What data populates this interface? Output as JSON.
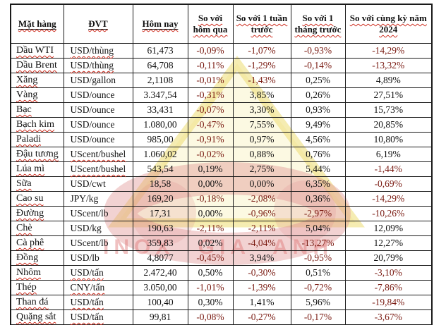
{
  "watermark": {
    "letters": "INOX GIA ANH",
    "triangle_fill": "#F5EC9E",
    "triangle_stroke": "#EDDC72",
    "circle_color": "#DE8F8F"
  },
  "colors": {
    "negative_value": "#7A1B12",
    "positive_value": "#111111",
    "spellcheck": "#CE2F21",
    "grid": "#1a1a1a"
  },
  "table": {
    "headers": [
      "Mặt hàng",
      "ĐVT",
      "Hôm nay",
      "So với hôm qua",
      "So với 1 tuần trước",
      "So với 1 tháng trước",
      "So với cùng kỳ năm 2024"
    ],
    "header_solid_underline": [
      true,
      true,
      true,
      false,
      false,
      false,
      false
    ],
    "rows": [
      {
        "name": "Dầu WTI",
        "unit": "USD/thùng",
        "unit_spell": true,
        "values": [
          "61,473",
          "-0,09%",
          "-1,07%",
          "-0,93%",
          "-14,29%"
        ]
      },
      {
        "name": "Dầu Brent",
        "unit": "USD/thùng",
        "unit_spell": true,
        "values": [
          "64,708",
          "-0,11%",
          "-1,29%",
          "-0,14%",
          "-13,32%"
        ]
      },
      {
        "name": "Xăng",
        "unit": "USD/gallon",
        "unit_spell": false,
        "values": [
          "2,1108",
          "-0,01%",
          "-1,43%",
          "0,25%",
          "4,89%"
        ]
      },
      {
        "name": "Vàng",
        "unit": "USD/ounce",
        "unit_spell": false,
        "values": [
          "3.347,54",
          "-0,31%",
          "3,85%",
          "0,26%",
          "27,51%"
        ]
      },
      {
        "name": "Bạc",
        "unit": "USD/ounce",
        "unit_spell": false,
        "values": [
          "33,431",
          "-0,07%",
          "3,30%",
          "0,93%",
          "15,73%"
        ]
      },
      {
        "name": "Bạch kim",
        "unit": "USD/ounce",
        "unit_spell": false,
        "values": [
          "1.080,00",
          "-0,47%",
          "7,55%",
          "9,49%",
          "20,85%"
        ]
      },
      {
        "name": "Paladi",
        "unit": "USD/ounce",
        "unit_spell": false,
        "values": [
          "985,00",
          "-0,91%",
          "0,97%",
          "4,56%",
          "10,80%"
        ]
      },
      {
        "name": "Đậu tương",
        "unit": "UScent/bushel",
        "unit_spell": true,
        "values": [
          "1.060,02",
          "-0,02%",
          "0,88%",
          "0,76%",
          "6,19%"
        ]
      },
      {
        "name": "Lúa mì",
        "unit": "UScent/bushel",
        "unit_spell": true,
        "values": [
          "543,54",
          "0,19%",
          "2,75%",
          "5,44%",
          "-1,44%"
        ]
      },
      {
        "name": "Sữa",
        "unit": "USD/cwt",
        "unit_spell": false,
        "values": [
          "18,58",
          "0,00%",
          "0,00%",
          "6,35%",
          "-0,69%"
        ]
      },
      {
        "name": "Cao su",
        "unit": "JPY/kg",
        "unit_spell": false,
        "values": [
          "169,20",
          "-0,18%",
          "-2,08%",
          "0,36%",
          "-14,29%"
        ]
      },
      {
        "name": "Đường",
        "unit": "UScent/lb",
        "unit_spell": false,
        "values": [
          "17,31",
          "0,00%",
          "-0,96%",
          "-2,97%",
          "-10,26%"
        ]
      },
      {
        "name": "Chè",
        "unit": "USD/kg",
        "unit_spell": false,
        "values": [
          "190,63",
          "-2,11%",
          "-2,11%",
          "5,04%",
          "12,09%"
        ]
      },
      {
        "name": "Cà phê",
        "unit": "UScent/lb",
        "unit_spell": false,
        "values": [
          "359,83",
          "0,02%",
          "-4,04%",
          "-13,27%",
          "12,27%"
        ]
      },
      {
        "name": "Đồng",
        "unit": "USD/lb",
        "unit_spell": false,
        "values": [
          "4,8077",
          "-0,45%",
          "3,94%",
          "-0,95%",
          "20,79%"
        ]
      },
      {
        "name": "Nhôm",
        "unit": "USD/tấn",
        "unit_spell": true,
        "values": [
          "2.472,40",
          "0,50%",
          "-0,30%",
          "0,51%",
          "-3,10%"
        ]
      },
      {
        "name": "Thép",
        "unit": "CNY/tấn",
        "unit_spell": true,
        "values": [
          "3.050,00",
          "-1,01%",
          "-1,39%",
          "-0,72%",
          "-7,86%"
        ]
      },
      {
        "name": "Than đá",
        "unit": "USD/tấn",
        "unit_spell": true,
        "values": [
          "100,40",
          "0,30%",
          "1,41%",
          "5,96%",
          "-19,84%"
        ]
      },
      {
        "name": "Quặng sắt",
        "unit": "USD/tấn",
        "unit_spell": true,
        "values": [
          "99,81",
          "-0,08%",
          "-0,27%",
          "-0,17%",
          "-3,67%"
        ]
      }
    ]
  }
}
